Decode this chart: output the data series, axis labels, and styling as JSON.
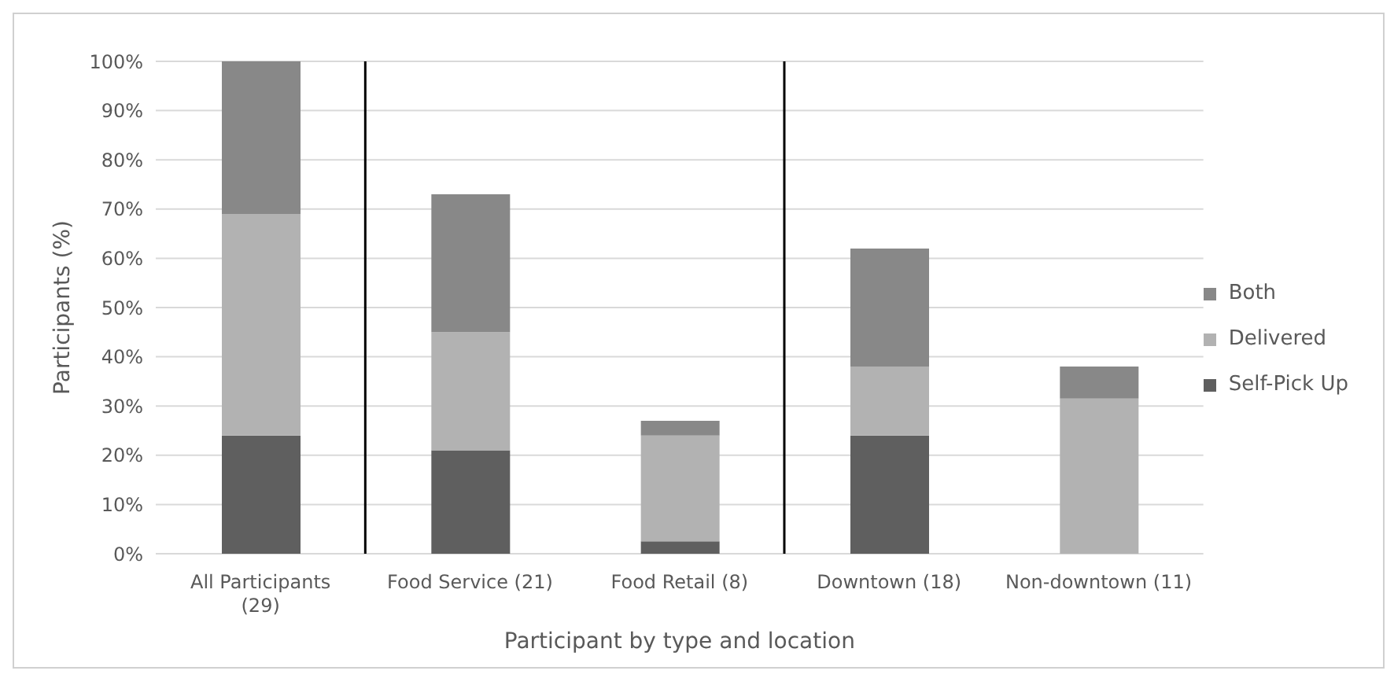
{
  "chart_data": {
    "type": "bar",
    "stacked": true,
    "xlabel": "Participant by type and location",
    "ylabel": "Participants (%)",
    "categories": [
      "All Participants (29)",
      "Food Service (21)",
      "Food Retail (8)",
      "Downtown (18)",
      "Non-downtown (11)"
    ],
    "series": [
      {
        "name": "Self-Pick Up",
        "color": "#5f5f5f",
        "values": [
          24,
          21,
          2.5,
          24,
          0
        ]
      },
      {
        "name": "Delivered",
        "color": "#b2b2b2",
        "values": [
          45,
          24,
          21.5,
          14,
          31.5
        ]
      },
      {
        "name": "Both",
        "color": "#888888",
        "values": [
          31,
          28,
          3,
          24,
          6.5
        ]
      }
    ],
    "ylim": [
      0,
      100
    ],
    "yticks": [
      {
        "value": 0,
        "label": "0%"
      },
      {
        "value": 10,
        "label": "10%"
      },
      {
        "value": 20,
        "label": "20%"
      },
      {
        "value": 30,
        "label": "30%"
      },
      {
        "value": 40,
        "label": "40%"
      },
      {
        "value": 50,
        "label": "50%"
      },
      {
        "value": 60,
        "label": "60%"
      },
      {
        "value": 70,
        "label": "70%"
      },
      {
        "value": 80,
        "label": "80%"
      },
      {
        "value": 90,
        "label": "90%"
      },
      {
        "value": 100,
        "label": "100%"
      }
    ],
    "grid": "y",
    "legend": "right"
  }
}
